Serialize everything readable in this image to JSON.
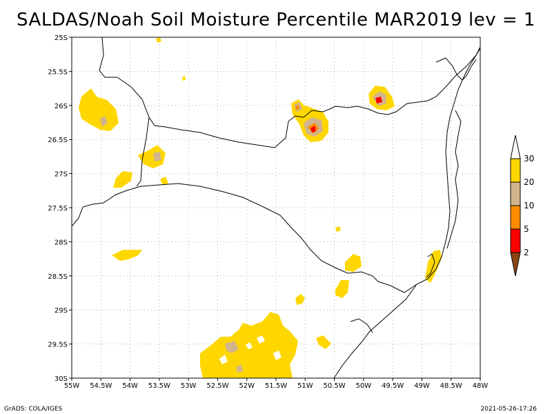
{
  "title": "SALDAS/Noah Soil Moisture Percentile MAR2019 lev = 1",
  "footer_left": "GrADS: COLA/IGES",
  "footer_right": "2021-05-26-17:26",
  "lon_labels": [
    "55W",
    "54.5W",
    "54W",
    "53.5W",
    "53W",
    "52.5W",
    "52W",
    "51.5W",
    "51W",
    "50.5W",
    "50W",
    "49.5W",
    "49W",
    "48.5W",
    "48W"
  ],
  "lat_labels": [
    "25S",
    "25.5S",
    "26S",
    "26.5S",
    "27S",
    "27.5S",
    "28S",
    "28.5S",
    "29S",
    "29.5S",
    "30S"
  ],
  "legend": {
    "labels": [
      "2",
      "5",
      "10",
      "20",
      "30"
    ],
    "colors": [
      "#8b4513",
      "#ff0000",
      "#ff8c00",
      "#d2b48c",
      "#ffd700"
    ]
  },
  "colors": {
    "fill_yellow": "#ffd700",
    "fill_tan": "#d2b48c",
    "fill_orange": "#ff8c00",
    "fill_red": "#ff0000",
    "border": "#000000",
    "grid": "#999999"
  }
}
